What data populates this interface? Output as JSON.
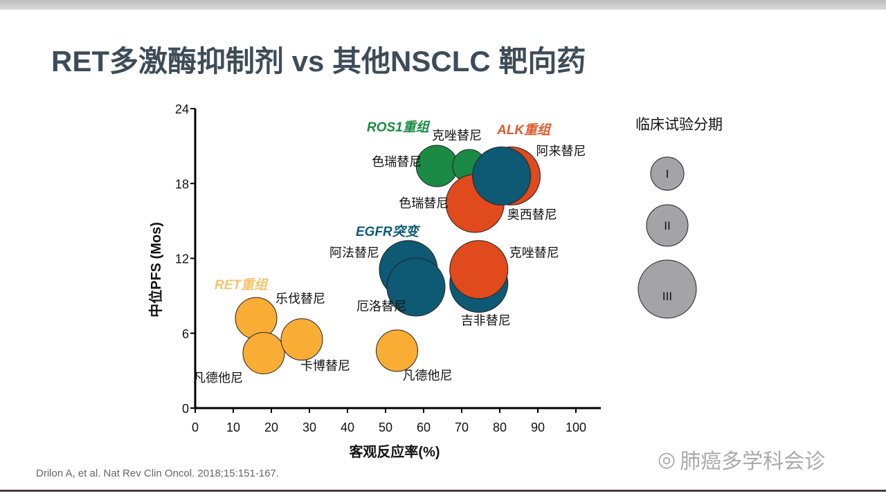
{
  "title": "RET多激酶抑制剂 vs 其他NSCLC 靶向药",
  "citation": "Drilon A, et al. Nat Rev Clin Oncol. 2018;15:151-167.",
  "watermark": "肺癌多学科会诊",
  "chart_data": {
    "type": "bubble",
    "xlabel": "客观反应率(%)",
    "ylabel": "中位PFS (Mos)",
    "xlim": [
      0,
      100
    ],
    "ylim": [
      0,
      24
    ],
    "xticks": [
      0,
      10,
      20,
      30,
      40,
      50,
      60,
      70,
      80,
      90,
      100
    ],
    "yticks": [
      0,
      6,
      12,
      18,
      24
    ],
    "legend": {
      "title": "临床试验分期",
      "entries": [
        "I",
        "II",
        "III"
      ]
    },
    "groups": [
      {
        "name": "RET重组",
        "color": "#f9ad35",
        "label_color": "#f6c46e"
      },
      {
        "name": "ROS1重组",
        "color": "#1a8a44",
        "label_color": "#1a8a44"
      },
      {
        "name": "ALK重组",
        "color": "#e04a1c",
        "label_color": "#e05a2c"
      },
      {
        "name": "EGFR突变",
        "color": "#0e5a75",
        "label_color": "#0e5a75"
      }
    ],
    "points": [
      {
        "label": "乐伐替尼",
        "group": 0,
        "x": 16,
        "y": 7.2,
        "phase": "II"
      },
      {
        "label": "凡德他尼",
        "group": 0,
        "x": 18,
        "y": 4.4,
        "phase": "II"
      },
      {
        "label": "卡博替尼",
        "group": 0,
        "x": 28,
        "y": 5.5,
        "phase": "II"
      },
      {
        "label": "凡德他尼",
        "group": 0,
        "x": 53,
        "y": 4.6,
        "phase": "II"
      },
      {
        "label": "色瑞替尼",
        "group": 1,
        "x": 63.5,
        "y": 19.4,
        "phase": "II"
      },
      {
        "label": "克唑替尼",
        "group": 1,
        "x": 72,
        "y": 19.4,
        "phase": "I"
      },
      {
        "label": "色瑞替尼",
        "group": 2,
        "x": 73.5,
        "y": 16.4,
        "phase": "III"
      },
      {
        "label": "阿来替尼",
        "group": 2,
        "x": 83,
        "y": 18.6,
        "phase": "III"
      },
      {
        "label": "奥西替尼",
        "group": 3,
        "x": 80.5,
        "y": 18.6,
        "phase": "III"
      },
      {
        "label": "厄洛替尼",
        "group": 3,
        "x": 58,
        "y": 9.7,
        "phase": "III"
      },
      {
        "label": "阿法替尼",
        "group": 3,
        "x": 56,
        "y": 11.1,
        "phase": "III"
      },
      {
        "label": "吉非替尼",
        "group": 3,
        "x": 74.5,
        "y": 10,
        "phase": "III"
      },
      {
        "label": "克唑替尼",
        "group": 2,
        "x": 74.5,
        "y": 11.1,
        "phase": "III"
      }
    ]
  }
}
